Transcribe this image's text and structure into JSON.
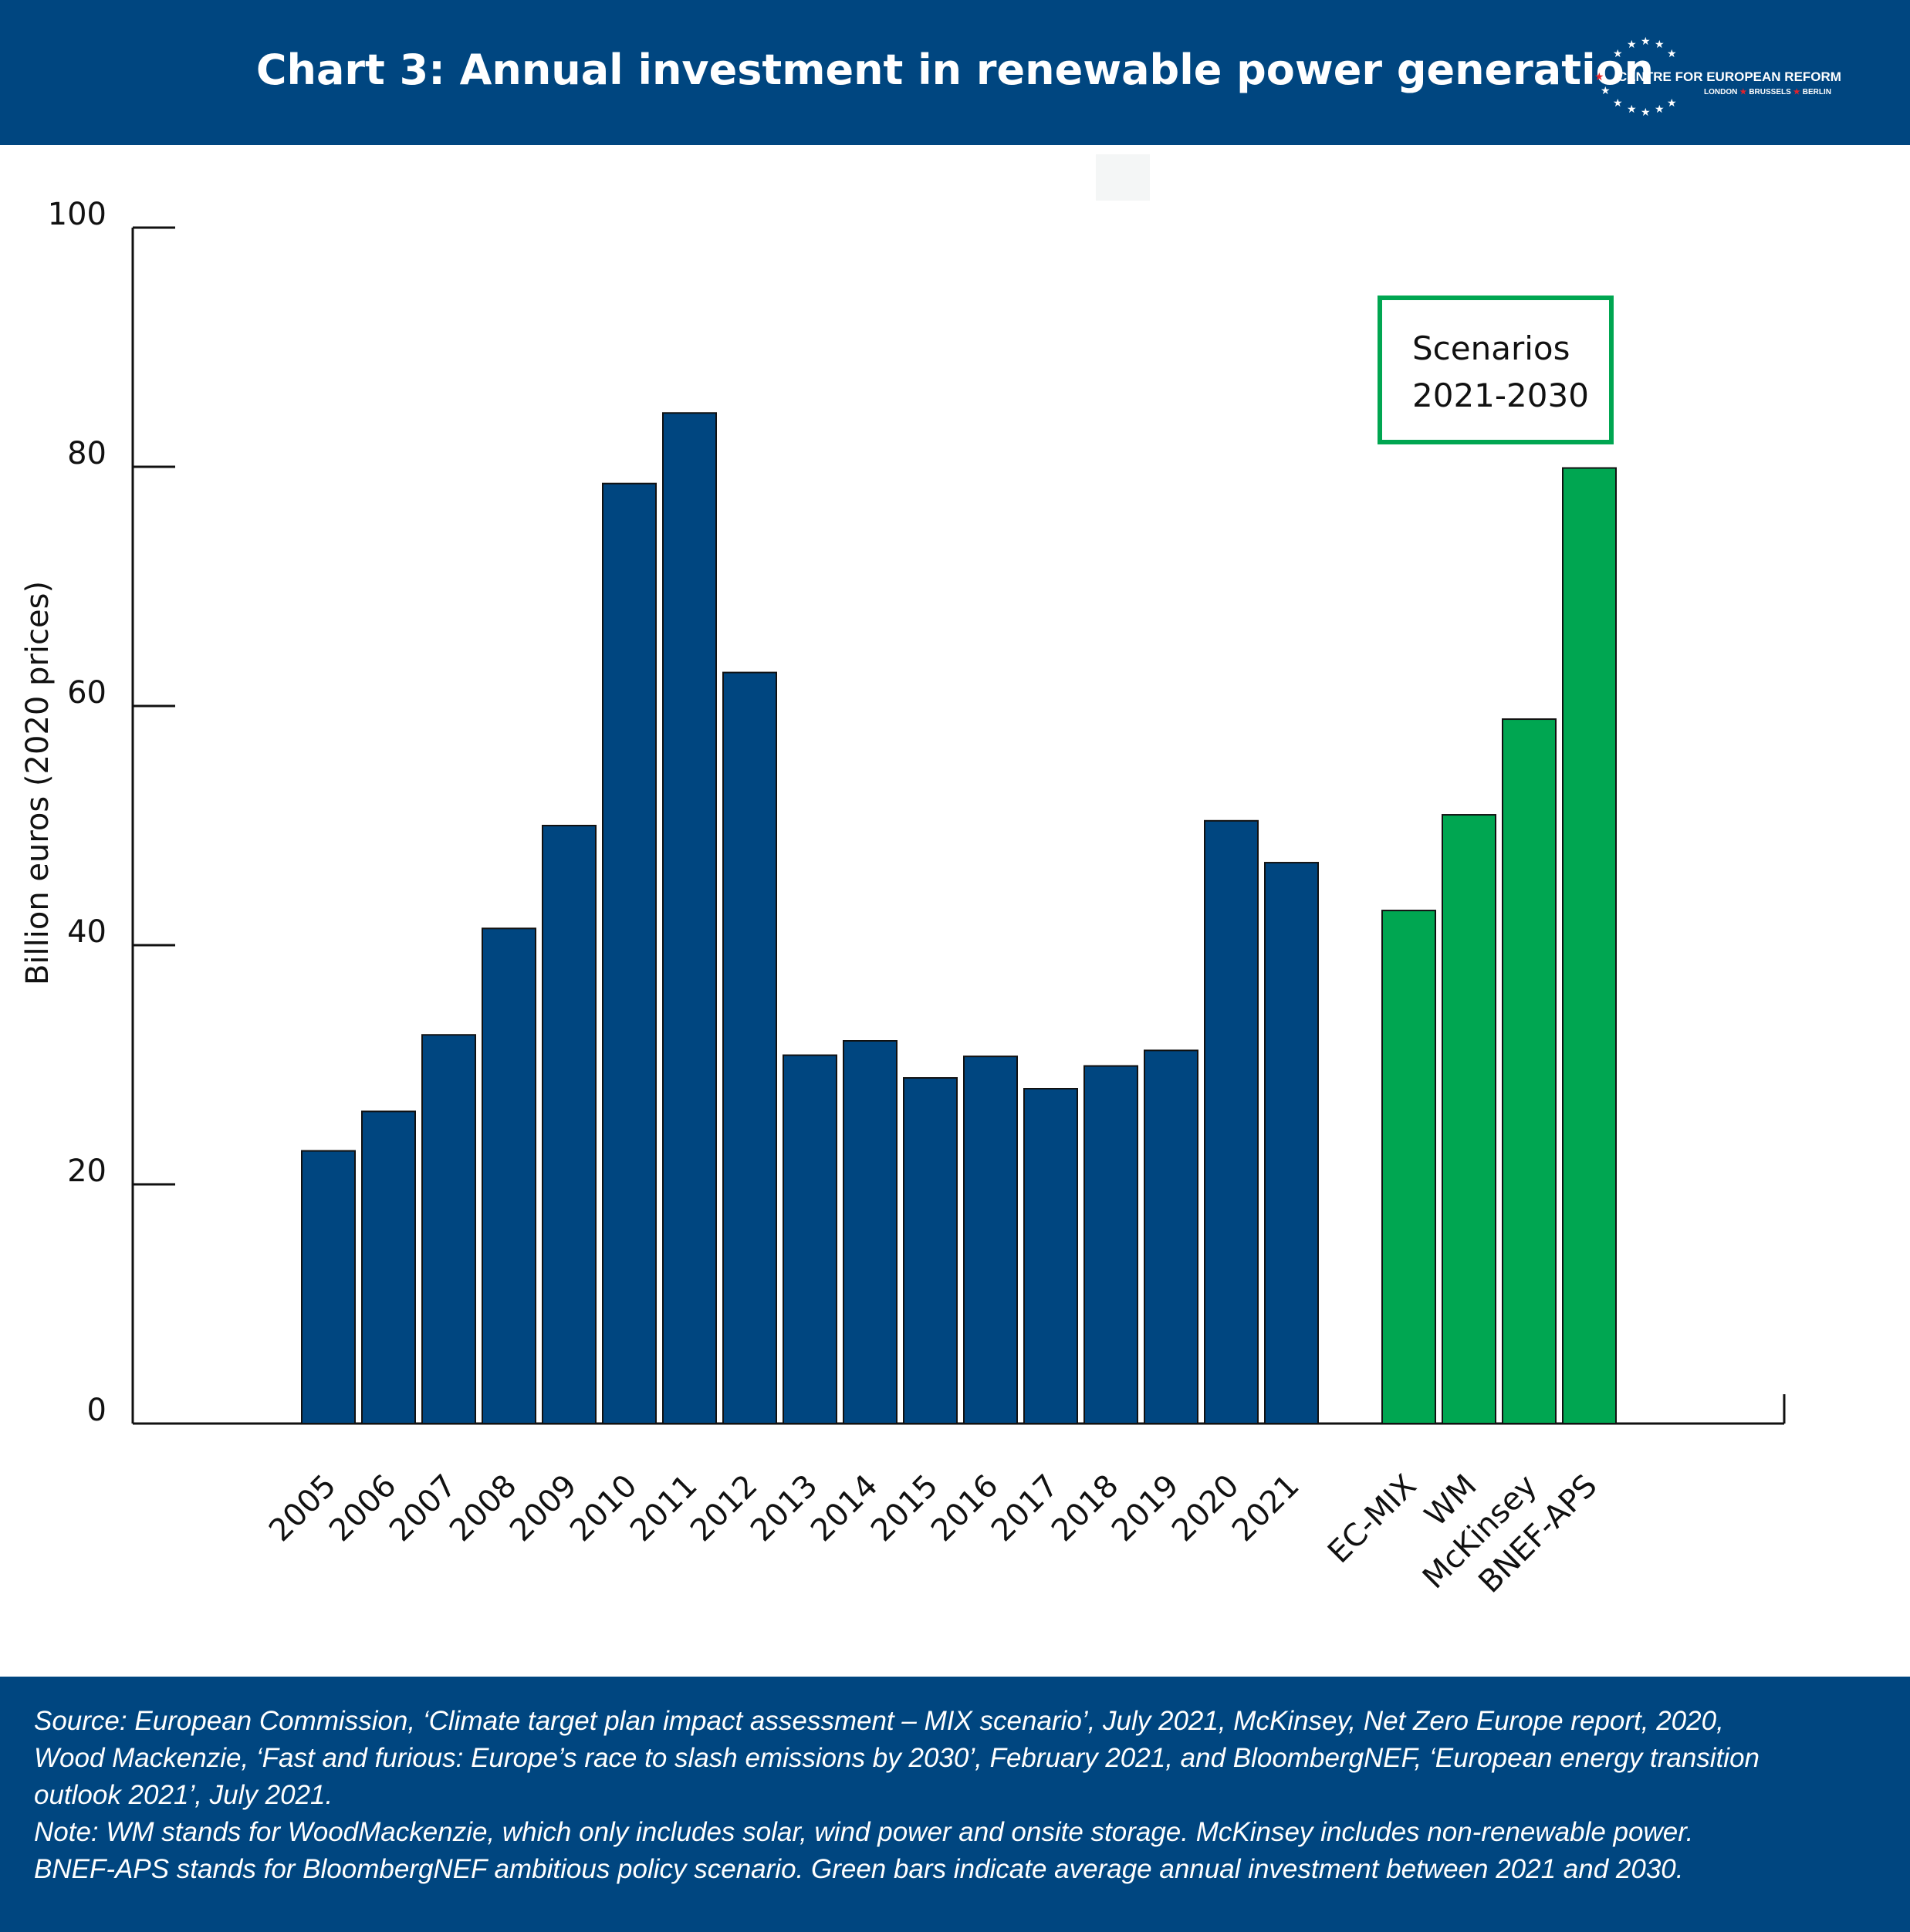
{
  "header": {
    "title": "Chart 3: Annual investment in renewable power generation",
    "logo": {
      "name": "CENTRE FOR EUROPEAN REFORM",
      "cities": [
        "LONDON",
        "BRUSSELS",
        "BERLIN"
      ]
    }
  },
  "chart_data": {
    "type": "bar",
    "title": "Chart 3: Annual investment in renewable power generation",
    "ylabel": "Billion euros (2020 prices)",
    "xlabel": "",
    "ylim": [
      0,
      100
    ],
    "yticks": [
      0,
      20,
      40,
      60,
      80,
      100
    ],
    "grid": false,
    "legend": "none",
    "annotation": {
      "lines": [
        "Scenarios",
        "2021-2030"
      ]
    },
    "series": [
      {
        "color": "#004680",
        "categories": [
          "2005",
          "2006",
          "2007",
          "2008",
          "2009",
          "2010",
          "2011",
          "2012",
          "2013",
          "2014",
          "2015",
          "2016",
          "2017",
          "2018",
          "2019",
          "2020",
          "2021"
        ],
        "values": [
          22.8,
          26.1,
          32.5,
          41.4,
          50.0,
          78.6,
          84.5,
          62.8,
          30.8,
          32.0,
          28.9,
          30.7,
          28.0,
          29.9,
          31.2,
          50.4,
          46.9
        ]
      },
      {
        "color": "#00a651",
        "categories": [
          "EC-MIX",
          "WM",
          "McKinsey",
          "BNEF-APS"
        ],
        "values": [
          42.9,
          50.9,
          58.9,
          79.9
        ]
      }
    ]
  },
  "footer": {
    "lines": [
      "Source: European Commission, ‘Climate target plan impact assessment – MIX scenario’, July 2021, McKinsey, Net Zero Europe report, 2020,",
      "Wood Mackenzie, ‘Fast and furious: Europe’s race to slash emissions by 2030’, February 2021, and BloombergNEF, ‘European energy transition",
      "outlook 2021’, July 2021.",
      "Note: WM stands for WoodMackenzie, which only includes solar, wind power and onsite storage. McKinsey includes non-renewable power.",
      "BNEF-APS stands for BloombergNEF ambitious policy scenario. Green bars indicate average annual investment between 2021 and 2030."
    ]
  }
}
